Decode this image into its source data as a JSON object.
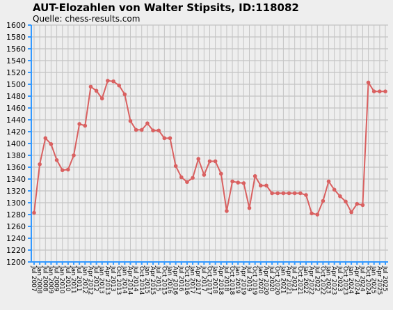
{
  "chart_data": {
    "type": "line",
    "title": "AUT-Elozahlen von Walter Stipsits, ID:118082",
    "subtitle": "Quelle: chess-results.com",
    "xlabel": "",
    "ylabel": "",
    "ylim": [
      1200,
      1600
    ],
    "yticks": [
      1200,
      1220,
      1240,
      1260,
      1280,
      1300,
      1320,
      1340,
      1360,
      1380,
      1400,
      1420,
      1440,
      1460,
      1480,
      1500,
      1520,
      1540,
      1560,
      1580,
      1600
    ],
    "grid": true,
    "x": [
      "Jul 2007",
      "Jan 2008",
      "Jul 2008",
      "Jan 2009",
      "Jul 2009",
      "Jan 2010",
      "Jul 2010",
      "Jan 2011",
      "Jul 2011",
      "Jan 2012",
      "Apr 2012",
      "Jul 2012",
      "Jan 2013",
      "Apr 2013",
      "Jul 2013",
      "Oct 2013",
      "Jan 2014",
      "Apr 2014",
      "Jul 2014",
      "Oct 2014",
      "Jan 2015",
      "Apr 2015",
      "Jul 2015",
      "Oct 2015",
      "Jan 2016",
      "Apr 2016",
      "Jul 2016",
      "Oct 2016",
      "Jan 2017",
      "Apr 2017",
      "Jul 2017",
      "Oct 2017",
      "Jan 2018",
      "Apr 2018",
      "Jul 2018",
      "Oct 2018",
      "Jan 2019",
      "Apr 2019",
      "Jul 2019",
      "Oct 2019",
      "Jan 2020",
      "Apr 2020",
      "Jul 2020",
      "Oct 2020",
      "Jan 2021",
      "Apr 2021",
      "Jul 2021",
      "Oct 2021",
      "Jan 2022",
      "Apr 2022",
      "Jul 2022",
      "Oct 2022",
      "Jan 2023",
      "Apr 2023",
      "Jul 2023",
      "Oct 2023",
      "Jan 2024",
      "Apr 2024",
      "Jul 2024",
      "Oct 2024",
      "Jan 2025",
      "Apr 2025",
      "Jul 2025"
    ],
    "series": [
      {
        "color": "#d96060",
        "values": [
          1283,
          1365,
          1409,
          1399,
          1372,
          1355,
          1356,
          1380,
          1433,
          1430,
          1496,
          1489,
          1476,
          1506,
          1505,
          1498,
          1483,
          1438,
          1423,
          1423,
          1434,
          1422,
          1422,
          1409,
          1409,
          1362,
          1343,
          1335,
          1342,
          1374,
          1347,
          1370,
          1370,
          1349,
          1286,
          1336,
          1334,
          1333,
          1291,
          1345,
          1329,
          1329,
          1316,
          1316,
          1316,
          1316,
          1316,
          1316,
          1313,
          1282,
          1280,
          1303,
          1336,
          1322,
          1311,
          1302,
          1284,
          1298,
          1296,
          1503,
          1488,
          1488,
          1488
        ]
      }
    ]
  }
}
